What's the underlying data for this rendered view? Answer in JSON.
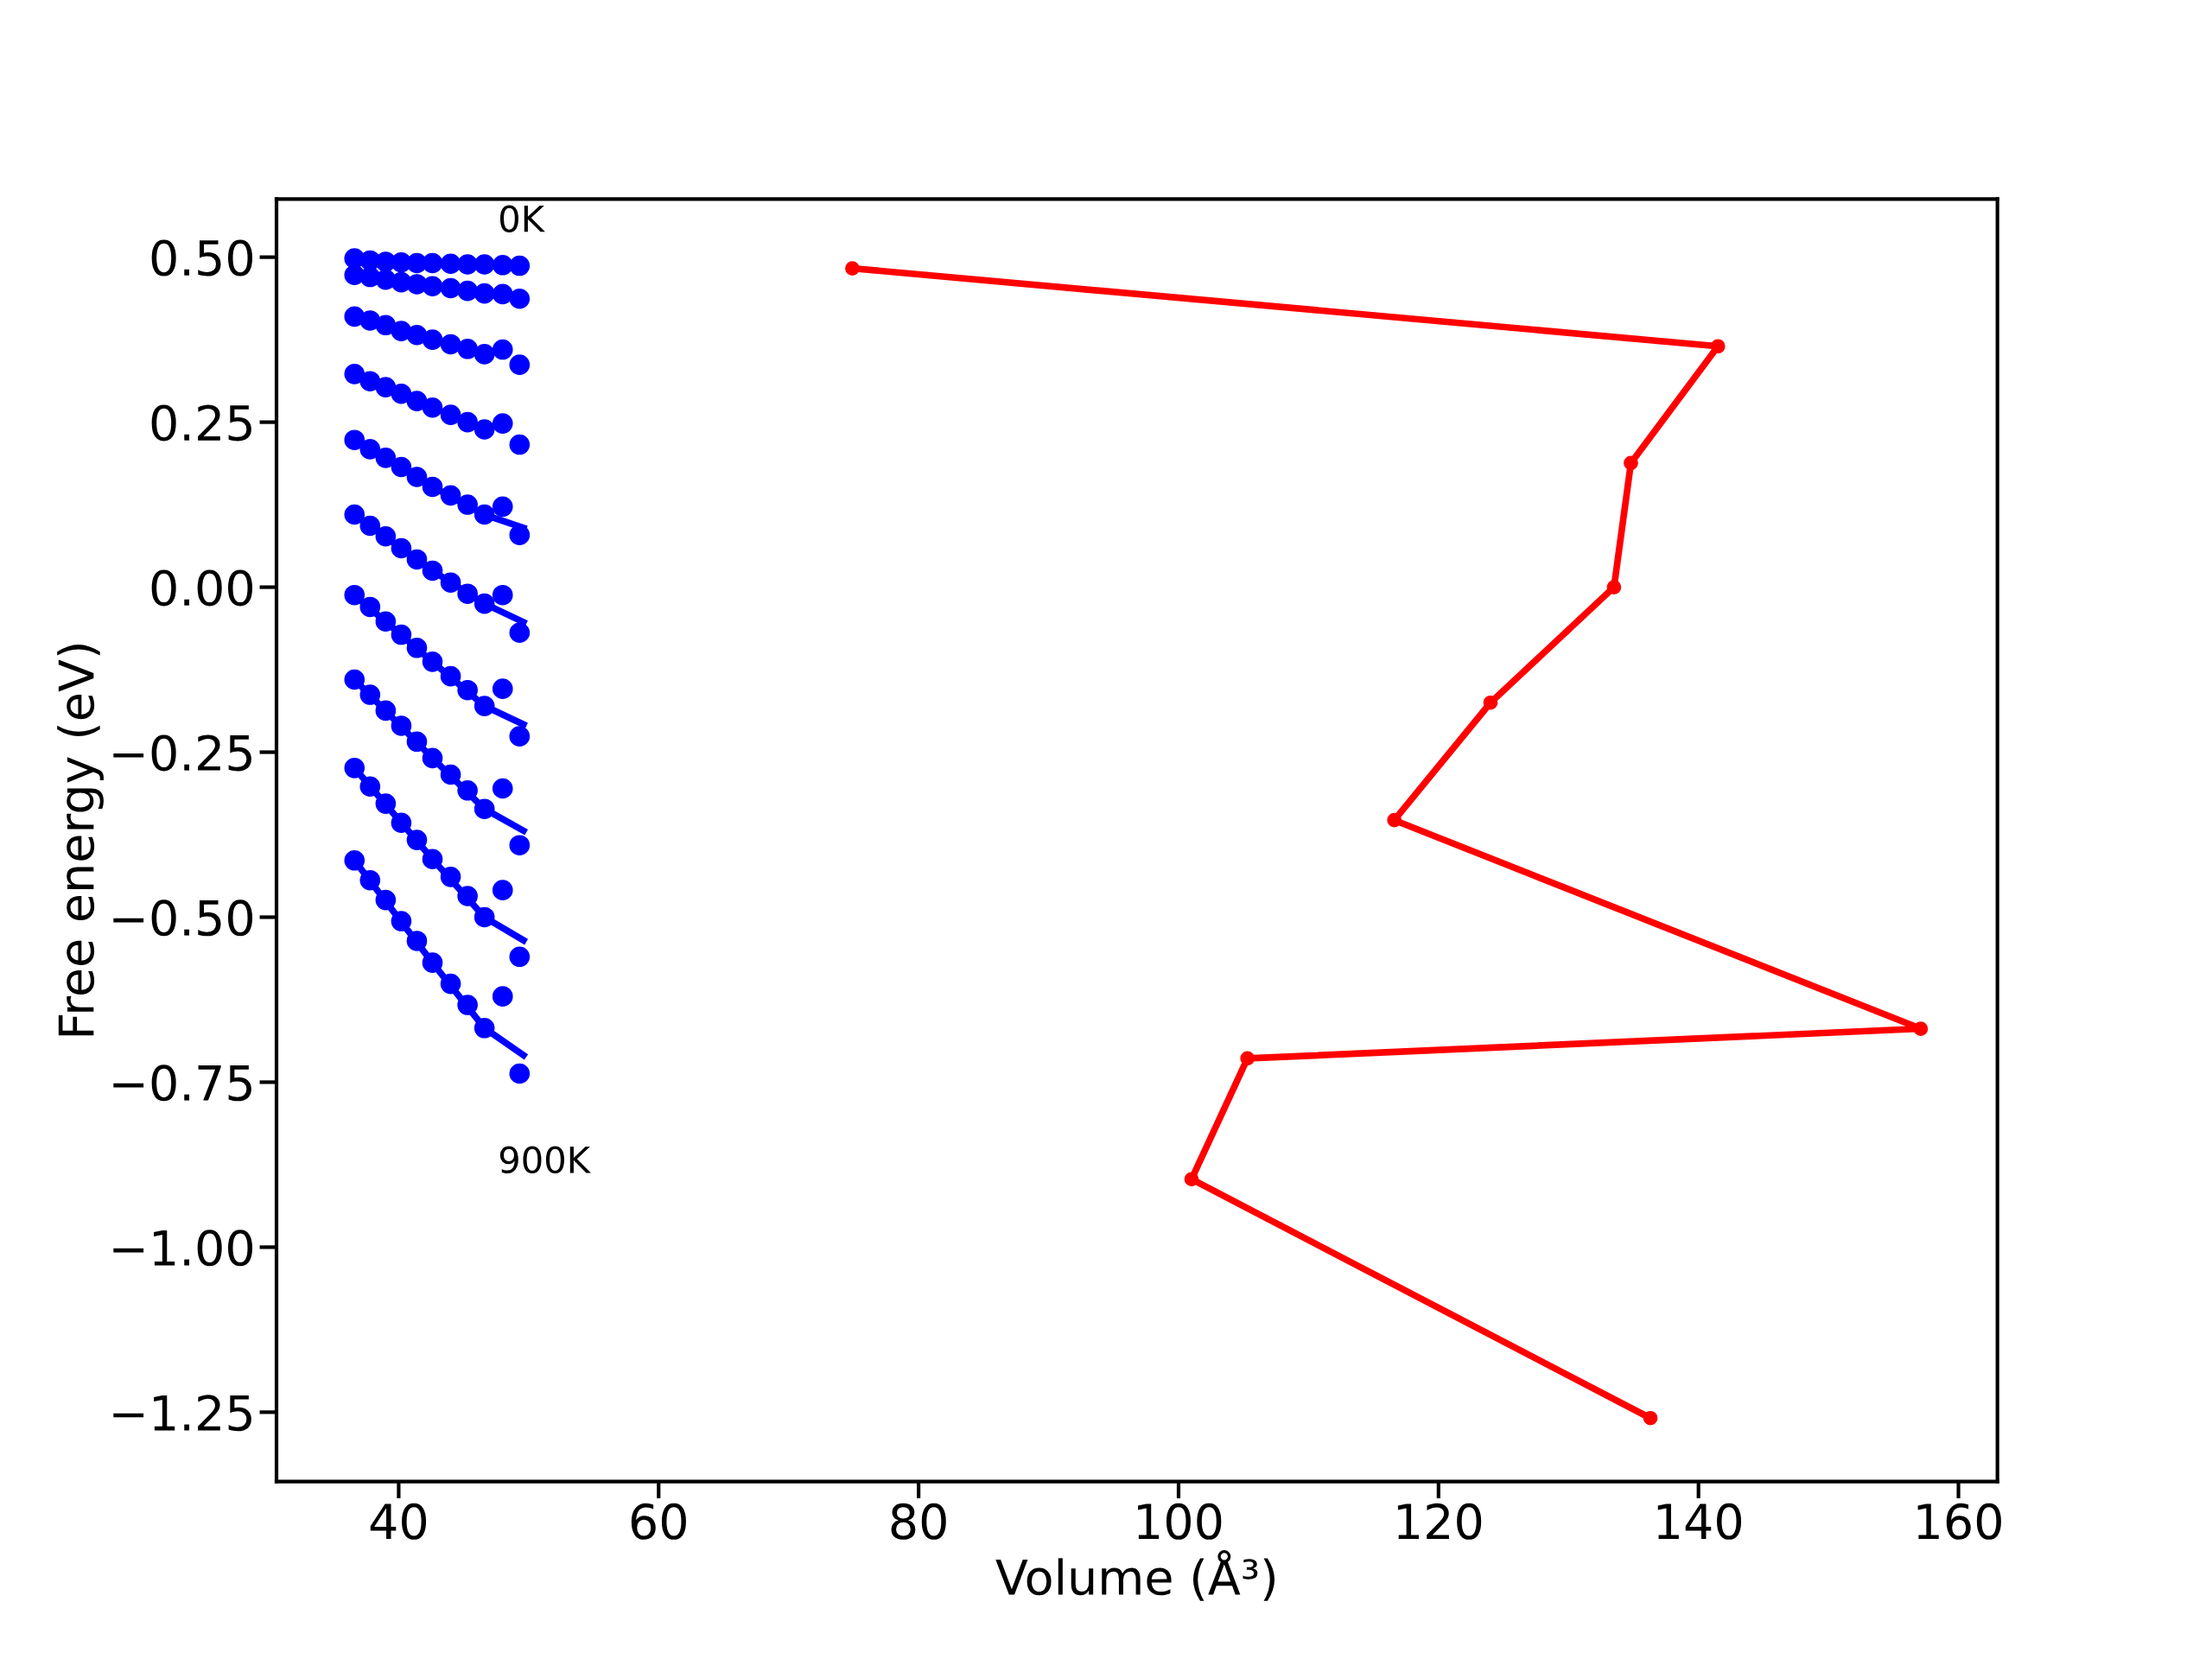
{
  "chart_data": {
    "type": "scatter",
    "xlabel": "Volume (Å³)",
    "ylabel": "Free energy (eV)",
    "xlim": [
      30.6,
      163.0
    ],
    "ylim": [
      -1.355,
      0.588
    ],
    "xticks": [
      40,
      60,
      80,
      100,
      120,
      140,
      160
    ],
    "yticks": [
      {
        "value": 0.5,
        "label": "0.50"
      },
      {
        "value": 0.25,
        "label": "0.25"
      },
      {
        "value": 0,
        "label": "0.00"
      },
      {
        "value": -0.25,
        "label": "−0.25"
      },
      {
        "value": -0.5,
        "label": "−0.50"
      },
      {
        "value": -0.75,
        "label": "−0.75"
      },
      {
        "value": -1.0,
        "label": "−1.00"
      },
      {
        "value": -1.25,
        "label": "−1.25"
      }
    ],
    "grid": false,
    "legend": false,
    "x": [
      36.6,
      37.8,
      39.0,
      40.2,
      41.4,
      42.6,
      44.0,
      45.3,
      46.6,
      48.0,
      49.3
    ],
    "annotations": [
      "0K",
      "900K"
    ],
    "series": [
      {
        "type": "scatter",
        "color": "#0000ff",
        "marker": "circle",
        "values": [
          0.498,
          0.495,
          0.493,
          0.492,
          0.491,
          0.491,
          0.49,
          0.489,
          0.489,
          0.488,
          0.487
        ]
      },
      {
        "type": "scatter",
        "color": "#0000ff",
        "marker": "circle",
        "values": [
          0.473,
          0.47,
          0.466,
          0.462,
          0.459,
          0.456,
          0.453,
          0.449,
          0.445,
          0.444,
          0.437
        ]
      },
      {
        "type": "scatter",
        "color": "#0000ff",
        "marker": "circle",
        "values": [
          0.41,
          0.404,
          0.397,
          0.388,
          0.382,
          0.375,
          0.368,
          0.361,
          0.353,
          0.36,
          0.337
        ]
      },
      {
        "type": "scatter",
        "color": "#0000ff",
        "marker": "circle",
        "values": [
          0.323,
          0.312,
          0.303,
          0.293,
          0.282,
          0.272,
          0.261,
          0.25,
          0.239,
          0.248,
          0.216
        ]
      },
      {
        "type": "scatter",
        "color": "#0000ff",
        "marker": "circle",
        "values": [
          0.223,
          0.209,
          0.196,
          0.182,
          0.167,
          0.152,
          0.139,
          0.125,
          0.11,
          0.122,
          0.079
        ]
      },
      {
        "type": "scatter",
        "color": "#0000ff",
        "marker": "circle",
        "values": [
          0.11,
          0.093,
          0.077,
          0.059,
          0.042,
          0.025,
          0.007,
          -0.01,
          -0.025,
          -0.012,
          -0.069
        ]
      },
      {
        "type": "scatter",
        "color": "#0000ff",
        "marker": "circle",
        "values": [
          -0.012,
          -0.03,
          -0.052,
          -0.072,
          -0.092,
          -0.113,
          -0.135,
          -0.156,
          -0.18,
          -0.154,
          -0.226
        ]
      },
      {
        "type": "scatter",
        "color": "#0000ff",
        "marker": "circle",
        "values": [
          -0.14,
          -0.163,
          -0.187,
          -0.21,
          -0.234,
          -0.259,
          -0.284,
          -0.308,
          -0.336,
          -0.305,
          -0.391
        ]
      },
      {
        "type": "scatter",
        "color": "#0000ff",
        "marker": "circle",
        "values": [
          -0.274,
          -0.302,
          -0.328,
          -0.357,
          -0.383,
          -0.412,
          -0.439,
          -0.468,
          -0.5,
          -0.459,
          -0.56
        ]
      },
      {
        "type": "scatter",
        "color": "#0000ff",
        "marker": "circle",
        "values": [
          -0.414,
          -0.444,
          -0.474,
          -0.506,
          -0.536,
          -0.569,
          -0.601,
          -0.633,
          -0.668,
          -0.62,
          -0.737
        ]
      },
      {
        "type": "line",
        "color": "#0000ff",
        "marker": "none",
        "x": [
          36.6,
          42.6,
          46.6,
          49.6
        ],
        "values": [
          0.223,
          0.152,
          0.11,
          0.09
        ]
      },
      {
        "type": "line",
        "color": "#0000ff",
        "marker": "none",
        "x": [
          36.6,
          42.6,
          46.6,
          49.6
        ],
        "values": [
          0.11,
          0.025,
          -0.025,
          -0.053
        ]
      },
      {
        "type": "line",
        "color": "#0000ff",
        "marker": "none",
        "x": [
          36.6,
          42.6,
          46.6,
          49.6
        ],
        "values": [
          -0.012,
          -0.113,
          -0.18,
          -0.208
        ]
      },
      {
        "type": "line",
        "color": "#0000ff",
        "marker": "none",
        "x": [
          36.6,
          42.6,
          46.6,
          49.6
        ],
        "values": [
          -0.14,
          -0.259,
          -0.336,
          -0.369
        ]
      },
      {
        "type": "line",
        "color": "#0000ff",
        "marker": "none",
        "x": [
          36.6,
          42.6,
          46.6,
          49.6
        ],
        "values": [
          -0.274,
          -0.412,
          -0.5,
          -0.535
        ]
      },
      {
        "type": "line",
        "color": "#0000ff",
        "marker": "none",
        "x": [
          36.6,
          42.6,
          46.6,
          49.6
        ],
        "values": [
          -0.414,
          -0.569,
          -0.668,
          -0.709
        ]
      },
      {
        "type": "line",
        "color": "#ff0000",
        "marker": "circle",
        "x": [
          74.9,
          141.5,
          134.8,
          133.5,
          124.0,
          116.6,
          157.1,
          105.3,
          101.0,
          136.3
        ],
        "values": [
          0.483,
          0.365,
          0.188,
          0.0,
          -0.175,
          -0.353,
          -0.669,
          -0.714,
          -0.897,
          -1.259
        ]
      }
    ]
  }
}
